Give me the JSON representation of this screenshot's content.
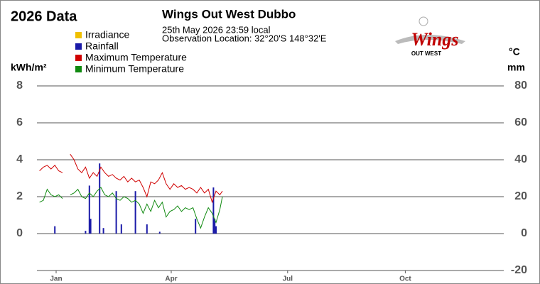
{
  "chart_data": {
    "type": "line",
    "title": "2026 Data",
    "subtitle": "Wings Out West Dubbo",
    "timestamp": "25th May 2026  23:59 local",
    "location": "Observation Location: 32°20'S 148°32'E",
    "ylabel": "kWh/m²",
    "y2label": "°C",
    "y2label2": "mm",
    "logo": {
      "text": "Wings",
      "subtext": "OUT WEST"
    },
    "xlim": [
      0,
      365
    ],
    "xticks": [
      {
        "value": 15,
        "label": "Jan"
      },
      {
        "value": 105,
        "label": "Apr"
      },
      {
        "value": 196,
        "label": "Jul"
      },
      {
        "value": 288,
        "label": "Oct"
      }
    ],
    "ylim": [
      -2,
      8
    ],
    "yticks": [
      0,
      2,
      4,
      6,
      8
    ],
    "y2lim": [
      -20,
      80
    ],
    "y2ticks": [
      -20,
      0,
      20,
      40,
      60,
      80
    ],
    "grid": true,
    "x": [
      2,
      5,
      8,
      11,
      14,
      17,
      20,
      23,
      26,
      29,
      32,
      35,
      38,
      41,
      44,
      47,
      50,
      53,
      56,
      59,
      62,
      65,
      68,
      71,
      74,
      77,
      80,
      83,
      86,
      89,
      92,
      95,
      98,
      101,
      104,
      107,
      110,
      113,
      116,
      119,
      122,
      125,
      128,
      131,
      134,
      137,
      140,
      143,
      145
    ],
    "series": [
      {
        "name": "Irradiance",
        "color": "#f0c000"
      },
      {
        "name": "Rainfall",
        "color": "#1a1aa8",
        "axis": "y2",
        "type": "bar",
        "x": [
          14,
          38,
          41,
          42,
          49,
          52,
          62,
          66,
          77,
          86,
          96,
          124,
          138,
          139,
          140
        ],
        "values": [
          4,
          1.5,
          26,
          8,
          38,
          3,
          23,
          5,
          23,
          5,
          1,
          8,
          25,
          8,
          4
        ]
      },
      {
        "name": "Maximum Temperature",
        "color": "#d00000",
        "axis": "y2",
        "values": [
          34,
          36,
          37,
          35,
          37,
          34,
          33,
          null,
          43,
          40,
          35,
          33,
          36,
          30,
          33,
          31,
          36,
          33,
          31,
          32,
          30,
          29,
          31,
          28,
          30,
          28,
          29,
          25,
          20,
          28,
          27,
          29,
          33,
          27,
          24,
          27,
          25,
          26,
          24,
          25,
          24,
          22,
          25,
          22,
          24,
          17,
          23,
          21,
          23
        ]
      },
      {
        "name": "Minimum Temperature",
        "color": "#108a10",
        "axis": "y2",
        "values": [
          17,
          18,
          24,
          21,
          20,
          21,
          19,
          null,
          21,
          22,
          24,
          20,
          19,
          22,
          20,
          23,
          25,
          21,
          20,
          22,
          19,
          18,
          20,
          19,
          17,
          18,
          16,
          11,
          16,
          12,
          18,
          14,
          17,
          9,
          12,
          13,
          15,
          12,
          14,
          13,
          14,
          8,
          3,
          9,
          14,
          11,
          6,
          13,
          20
        ]
      }
    ]
  }
}
